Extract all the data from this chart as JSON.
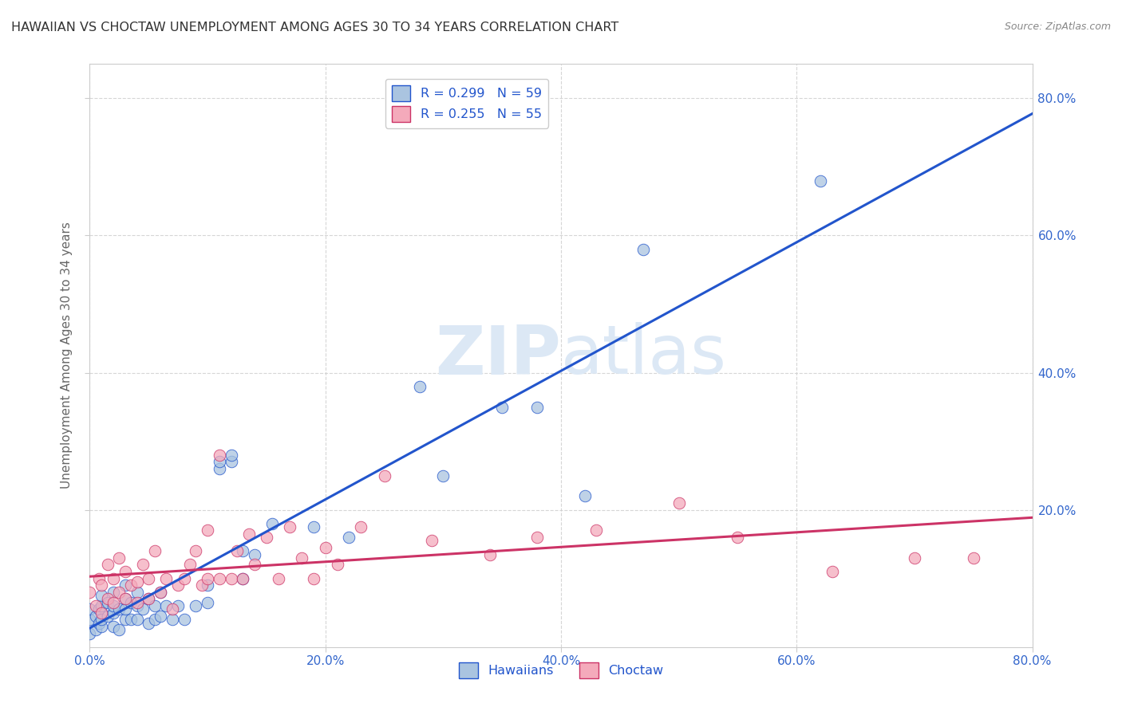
{
  "title": "HAWAIIAN VS CHOCTAW UNEMPLOYMENT AMONG AGES 30 TO 34 YEARS CORRELATION CHART",
  "source": "Source: ZipAtlas.com",
  "ylabel": "Unemployment Among Ages 30 to 34 years",
  "xlim": [
    0.0,
    0.8
  ],
  "ylim": [
    0.0,
    0.85
  ],
  "xticks": [
    0.0,
    0.2,
    0.4,
    0.6,
    0.8
  ],
  "yticks": [
    0.2,
    0.4,
    0.6,
    0.8
  ],
  "xticklabels": [
    "0.0%",
    "20.0%",
    "40.0%",
    "60.0%",
    "80.0%"
  ],
  "yticklabels": [
    "20.0%",
    "40.0%",
    "60.0%",
    "80.0%"
  ],
  "hawaiian_color": "#aac4e0",
  "choctaw_color": "#f4aabb",
  "hawaiian_line_color": "#2255cc",
  "choctaw_line_color": "#cc3366",
  "watermark_color": "#dce8f5",
  "legend_text_color": "#2255cc",
  "legend_n_color": "#cc3333",
  "tick_color": "#3366cc",
  "ylabel_color": "#666666",
  "title_color": "#333333",
  "source_color": "#888888",
  "background_color": "#ffffff",
  "grid_color": "#cccccc",
  "hawaiian_x": [
    0.0,
    0.0,
    0.0,
    0.005,
    0.005,
    0.008,
    0.008,
    0.01,
    0.01,
    0.01,
    0.01,
    0.015,
    0.015,
    0.02,
    0.02,
    0.02,
    0.02,
    0.025,
    0.025,
    0.03,
    0.03,
    0.03,
    0.03,
    0.035,
    0.035,
    0.04,
    0.04,
    0.04,
    0.045,
    0.05,
    0.05,
    0.055,
    0.055,
    0.06,
    0.06,
    0.065,
    0.07,
    0.075,
    0.08,
    0.09,
    0.1,
    0.1,
    0.11,
    0.11,
    0.12,
    0.12,
    0.13,
    0.13,
    0.14,
    0.155,
    0.19,
    0.22,
    0.28,
    0.3,
    0.35,
    0.38,
    0.42,
    0.47,
    0.62
  ],
  "hawaiian_y": [
    0.02,
    0.04,
    0.055,
    0.025,
    0.045,
    0.035,
    0.055,
    0.03,
    0.04,
    0.06,
    0.075,
    0.045,
    0.065,
    0.03,
    0.05,
    0.06,
    0.08,
    0.025,
    0.055,
    0.04,
    0.055,
    0.07,
    0.09,
    0.04,
    0.065,
    0.04,
    0.06,
    0.08,
    0.055,
    0.035,
    0.07,
    0.04,
    0.06,
    0.045,
    0.08,
    0.06,
    0.04,
    0.06,
    0.04,
    0.06,
    0.065,
    0.09,
    0.26,
    0.27,
    0.27,
    0.28,
    0.1,
    0.14,
    0.135,
    0.18,
    0.175,
    0.16,
    0.38,
    0.25,
    0.35,
    0.35,
    0.22,
    0.58,
    0.68
  ],
  "choctaw_x": [
    0.0,
    0.005,
    0.008,
    0.01,
    0.01,
    0.015,
    0.015,
    0.02,
    0.02,
    0.025,
    0.025,
    0.03,
    0.03,
    0.035,
    0.04,
    0.04,
    0.045,
    0.05,
    0.05,
    0.055,
    0.06,
    0.065,
    0.07,
    0.075,
    0.08,
    0.085,
    0.09,
    0.095,
    0.1,
    0.1,
    0.11,
    0.11,
    0.12,
    0.125,
    0.13,
    0.135,
    0.14,
    0.15,
    0.16,
    0.17,
    0.18,
    0.19,
    0.2,
    0.21,
    0.23,
    0.25,
    0.29,
    0.34,
    0.38,
    0.43,
    0.5,
    0.55,
    0.63,
    0.7,
    0.75
  ],
  "choctaw_y": [
    0.08,
    0.06,
    0.1,
    0.05,
    0.09,
    0.07,
    0.12,
    0.065,
    0.1,
    0.08,
    0.13,
    0.07,
    0.11,
    0.09,
    0.065,
    0.095,
    0.12,
    0.07,
    0.1,
    0.14,
    0.08,
    0.1,
    0.055,
    0.09,
    0.1,
    0.12,
    0.14,
    0.09,
    0.1,
    0.17,
    0.1,
    0.28,
    0.1,
    0.14,
    0.1,
    0.165,
    0.12,
    0.16,
    0.1,
    0.175,
    0.13,
    0.1,
    0.145,
    0.12,
    0.175,
    0.25,
    0.155,
    0.135,
    0.16,
    0.17,
    0.21,
    0.16,
    0.11,
    0.13,
    0.13
  ]
}
